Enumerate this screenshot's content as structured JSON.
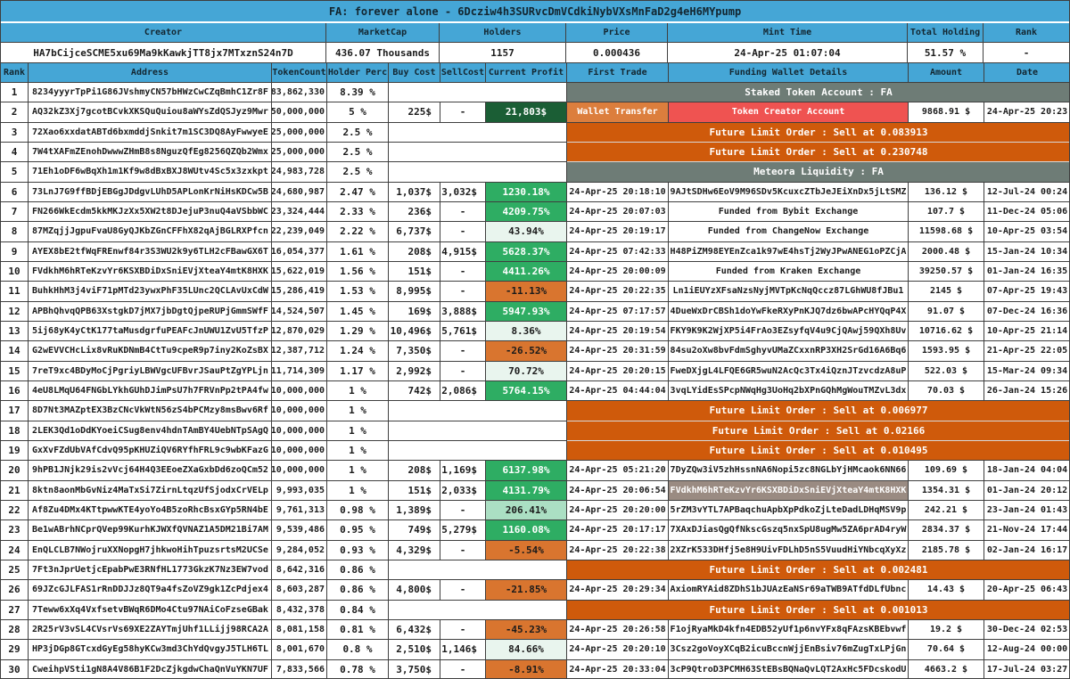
{
  "title": "FA: forever alone - 6Dcziw4h3SURvcDmVCdkiNybVXsMnFaD2g4eH6MYpump",
  "colors": {
    "header_blue": "#45a6d6",
    "grid_border": "#3f3f3f",
    "banner_gray": "#6e7c76",
    "banner_orange": "#cf5a0b",
    "profit_dark_green": "#1b5e35",
    "profit_green": "#2ead63",
    "profit_pale_green": "#e9f5ee",
    "profit_medium_green": "#abdfc3",
    "loss_orange": "#d9752f",
    "wallet_transfer_orange": "#dc7e3d",
    "creator_red": "#ef5351",
    "funding_highlight": "#9a8b82"
  },
  "summary": {
    "headers": [
      "Creator",
      "MarketCap",
      "Holders",
      "Price",
      "Mint Time",
      "Total Holding",
      "Rank"
    ],
    "values": [
      "HA7bCijceSCME5xu69Ma9kKawkjTT8jx7MTxznS24n7D",
      "436.07 Thousands",
      "1157",
      "0.000436",
      "24-Apr-25 01:07:04",
      "51.57 %",
      "-"
    ]
  },
  "table": {
    "headers": [
      "Rank",
      "Address",
      "TokenCount",
      "Holder Perc",
      "Buy Cost",
      "SellCost",
      "Current Profit",
      "First Trade",
      "Funding Wallet Details",
      "Amount",
      "Date"
    ],
    "rows": [
      {
        "rank": "1",
        "address": "8234yyyrTpPi1G86JVshmyCN57bHWzCwCZqBmhC1Zr8F",
        "tokens": "83,862,330",
        "perc": "8.39 %",
        "banner": {
          "text": "Staked Token Account : FA",
          "style": "gray"
        }
      },
      {
        "rank": "2",
        "address": "AQ32kZ3Xj7gcotBCvkXKSQuQuiou8aWYsZdQSJyz9Mwr",
        "tokens": "50,000,000",
        "perc": "5 %",
        "buy": "225$",
        "sell": "-",
        "profit": "21,803$",
        "profit_style": "dark_green",
        "first": "Wallet Transfer",
        "first_style": "wallet-transfer",
        "funding": "Token Creator Account",
        "funding_style": "creator",
        "amount": "9868.91 $",
        "date": "24-Apr-25 20:23"
      },
      {
        "rank": "3",
        "address": "72Xao6xxdatABTd6bxmddjSnkit7m1SC3DQ8AyFwwyeE",
        "tokens": "25,000,000",
        "perc": "2.5 %",
        "banner": {
          "text": "Future Limit Order : Sell at 0.083913",
          "style": "orange"
        }
      },
      {
        "rank": "4",
        "address": "7W4tXAFmZEnohDwwwZHmB8s8NguzQfEg8256QZQb2Wmx",
        "tokens": "25,000,000",
        "perc": "2.5 %",
        "banner": {
          "text": "Future Limit Order : Sell at 0.230748",
          "style": "orange"
        }
      },
      {
        "rank": "5",
        "address": "71Eh1oDF6wBqXh1m1Kf9w8dBxBXJ8WUtv4Sc5x3zxkpt",
        "tokens": "24,983,728",
        "perc": "2.5 %",
        "banner": {
          "text": "Meteora Liquidity : FA",
          "style": "gray"
        }
      },
      {
        "rank": "6",
        "address": "73LnJ7G9ffBDjEBGgJDdgvLUhD5APLonKrNiHsKDCw5B",
        "tokens": "24,680,987",
        "perc": "2.47 %",
        "buy": "1,037$",
        "sell": "3,032$",
        "profit": "1230.18%",
        "profit_style": "green",
        "first": "24-Apr-25 20:18:10",
        "funding": "9AJtSDHw6EoV9M96SDv5KcuxcZTbJeJEiXnDx5jLtSMZ",
        "amount": "136.12 $",
        "date": "12-Jul-24 00:24"
      },
      {
        "rank": "7",
        "address": "FN266WkEcdm5kkMKJzXx5XW2t8DJejuP3nuQ4aVSbbWC",
        "tokens": "23,324,444",
        "perc": "2.33 %",
        "buy": "236$",
        "sell": "-",
        "profit": "4209.75%",
        "profit_style": "green",
        "first": "24-Apr-25 20:07:03",
        "funding": "Funded from Bybit Exchange",
        "amount": "107.7 $",
        "date": "11-Dec-24 05:06"
      },
      {
        "rank": "8",
        "address": "87MZqjjJgpuFvaU8GyQJKbZGnCFFhX82qAjBGLRXPfcn",
        "tokens": "22,239,049",
        "perc": "2.22 %",
        "buy": "6,737$",
        "sell": "-",
        "profit": "43.94%",
        "profit_style": "pale_green",
        "first": "24-Apr-25 20:19:17",
        "funding": "Funded from ChangeNow Exchange",
        "amount": "11598.68 $",
        "date": "10-Apr-25 03:54"
      },
      {
        "rank": "9",
        "address": "AYEX8bE2tfWqFREnwf84r3S3WU2k9y6TLH2cFBawGX6T",
        "tokens": "16,054,377",
        "perc": "1.61 %",
        "buy": "208$",
        "sell": "4,915$",
        "profit": "5628.37%",
        "profit_style": "green",
        "first": "24-Apr-25 07:42:33",
        "funding": "H48PiZM98EYEnZca1k97wE4hsTj2WyJPwANEG1oPZCjA",
        "amount": "2000.48 $",
        "date": "15-Jan-24 10:34"
      },
      {
        "rank": "10",
        "address": "FVdkhM6hRTeKzvYr6KSXBDiDxSniEVjXteaY4mtK8HXK",
        "tokens": "15,622,019",
        "perc": "1.56 %",
        "buy": "151$",
        "sell": "-",
        "profit": "4411.26%",
        "profit_style": "green",
        "first": "24-Apr-25 20:00:09",
        "funding": "Funded from Kraken Exchange",
        "amount": "39250.57 $",
        "date": "01-Jan-24 16:35"
      },
      {
        "rank": "11",
        "address": "BuhkHhM3j4viF71pMTd23ywxPhF35LUnc2QCLAvUxCdW",
        "tokens": "15,286,419",
        "perc": "1.53 %",
        "buy": "8,995$",
        "sell": "-",
        "profit": "-11.13%",
        "profit_style": "loss",
        "first": "24-Apr-25 20:22:35",
        "funding": "Ln1iEUYzXFsaNzsNyjMVTpKcNqQccz87LGhWU8fJBu1",
        "amount": "2145 $",
        "date": "07-Apr-25 19:43"
      },
      {
        "rank": "12",
        "address": "APBhQhvqQPB63XstgkD7jMX7jbDgtQjpeRUPjGmmSWfF",
        "tokens": "14,524,507",
        "perc": "1.45 %",
        "buy": "169$",
        "sell": "3,888$",
        "profit": "5947.93%",
        "profit_style": "green",
        "first": "24-Apr-25 07:17:57",
        "funding": "4DueWxDrCBSh1doYwFkeRXyPnKJQ7dz6bwAPcHYQqP4X",
        "amount": "91.07 $",
        "date": "07-Dec-24 16:36"
      },
      {
        "rank": "13",
        "address": "5ij68yK4yCtK177taMusdgrfuPEAFcJnUWU1ZvU5TfzP",
        "tokens": "12,870,029",
        "perc": "1.29 %",
        "buy": "10,496$",
        "sell": "5,761$",
        "profit": "8.36%",
        "profit_style": "pale_green",
        "first": "24-Apr-25 20:19:54",
        "funding": "FKY9K9K2WjXP5i4FrAo3EZsyfqV4u9CjQAwj59QXh8Uv",
        "amount": "10716.62 $",
        "date": "10-Apr-25 21:14"
      },
      {
        "rank": "14",
        "address": "G2wEVVCHcLix8vRuKDNmB4CtTu9cpeR9p7iny2KoZsBX",
        "tokens": "12,387,712",
        "perc": "1.24 %",
        "buy": "7,350$",
        "sell": "-",
        "profit": "-26.52%",
        "profit_style": "loss",
        "first": "24-Apr-25 20:31:59",
        "funding": "84su2oXw8bvFdmSghyvUMaZCxxnRP3XH2SrGd16A6Bq6",
        "amount": "1593.95 $",
        "date": "21-Apr-25 22:05"
      },
      {
        "rank": "15",
        "address": "7reT9xc4BDyMoCjPgriyLBWVgcUFBvrJSauPtZgYPLjn",
        "tokens": "11,714,309",
        "perc": "1.17 %",
        "buy": "2,992$",
        "sell": "-",
        "profit": "70.72%",
        "profit_style": "pale_green",
        "first": "24-Apr-25 20:20:15",
        "funding": "FweDXjgL4LFQE6GR5wuN2AcQc3Tx4iQznJTzvcdzA8uP",
        "amount": "522.03 $",
        "date": "15-Mar-24 09:34"
      },
      {
        "rank": "16",
        "address": "4eU8LMqU64FNGbLYkhGUhDJimPsU7h7FRVnPp2tPA4fw",
        "tokens": "10,000,000",
        "perc": "1 %",
        "buy": "742$",
        "sell": "2,086$",
        "profit": "5764.15%",
        "profit_style": "green",
        "first": "24-Apr-25 04:44:04",
        "funding": "3vqLYidEsSPcpNWqHg3UoHq2bXPnGQhMgWouTMZvL3dx",
        "amount": "70.03 $",
        "date": "26-Jan-24 15:26"
      },
      {
        "rank": "17",
        "address": "8D7Nt3MAZptEX3BzCNcVkWtN56zS4bPCMzy8msBwv6Rf",
        "tokens": "10,000,000",
        "perc": "1 %",
        "banner": {
          "text": "Future Limit Order : Sell at 0.006977",
          "style": "orange"
        }
      },
      {
        "rank": "18",
        "address": "2LEK3Qd1oDdKYoeiCSug8env4hdnTAmBY4UebNTpSAgQ",
        "tokens": "10,000,000",
        "perc": "1 %",
        "banner": {
          "text": "Future Limit Order : Sell at 0.02166",
          "style": "orange"
        }
      },
      {
        "rank": "19",
        "address": "GxXvFZdUbVAfCdvQ95pKHUZiQV6RYfhFRL9c9wbKFazG",
        "tokens": "10,000,000",
        "perc": "1 %",
        "banner": {
          "text": "Future Limit Order : Sell at 0.010495",
          "style": "orange"
        }
      },
      {
        "rank": "20",
        "address": "9hPB1JNjk29is2vVcj64H4Q3EEoeZXaGxbDd6zoQCm52",
        "tokens": "10,000,000",
        "perc": "1 %",
        "buy": "208$",
        "sell": "1,169$",
        "profit": "6137.98%",
        "profit_style": "green",
        "first": "24-Apr-25 05:21:20",
        "funding": "7DyZQw3iV5zhHssnNA6Nopi5zc8NGLbYjHMcaok6NN66",
        "amount": "109.69 $",
        "date": "18-Jan-24 04:04"
      },
      {
        "rank": "21",
        "address": "8ktn8aonMbGvNiz4MaTxSi7ZirnLtqzUfSjodxCrVELp",
        "tokens": "9,993,035",
        "perc": "1 %",
        "buy": "151$",
        "sell": "2,033$",
        "profit": "4131.79%",
        "profit_style": "green",
        "first": "24-Apr-25 20:06:54",
        "funding": "FVdkhM6hRTeKzvYr6KSXBDiDxSniEVjXteaY4mtK8HXK",
        "funding_style": "highlight",
        "amount": "1354.31 $",
        "date": "01-Jan-24 20:12"
      },
      {
        "rank": "22",
        "address": "Af8Zu4DMx4KTtpwwKTE4yoYo4B5zoRhcBsxGYp5RN4bE",
        "tokens": "9,761,313",
        "perc": "0.98 %",
        "buy": "1,389$",
        "sell": "-",
        "profit": "206.41%",
        "profit_style": "medium_green",
        "first": "24-Apr-25 20:20:00",
        "funding": "5rZM3vYTL7APBaqchuApbXpPdkoZjLteDadLDHqMSV9p",
        "amount": "242.21 $",
        "date": "23-Jan-24 01:43"
      },
      {
        "rank": "23",
        "address": "Be1wABrhNCprQVep99KurhKJWXfQVNAZ1A5DM21Bi7AM",
        "tokens": "9,539,486",
        "perc": "0.95 %",
        "buy": "749$",
        "sell": "5,279$",
        "profit": "1160.08%",
        "profit_style": "green",
        "first": "24-Apr-25 20:17:17",
        "funding": "7XAxDJiasQgQfNkscGszq5nxSpU8ugMw5ZA6prAD4ryW",
        "amount": "2834.37 $",
        "date": "21-Nov-24 17:44"
      },
      {
        "rank": "24",
        "address": "EnQLCLB7NWojruXXNopgH7jhkwoHihTpuzsrtsM2UCSe",
        "tokens": "9,284,052",
        "perc": "0.93 %",
        "buy": "4,329$",
        "sell": "-",
        "profit": "-5.54%",
        "profit_style": "loss",
        "first": "24-Apr-25 20:22:38",
        "funding": "2XZrK533DHfj5e8H9UivFDLhD5nS5VuudHiYNbcqXyXz",
        "amount": "2185.78 $",
        "date": "02-Jan-24 16:17"
      },
      {
        "rank": "25",
        "address": "7Ft3nJprUetjcEpabPwE3RNfHL1773GkzK7Nz3EW7vod",
        "tokens": "8,642,316",
        "perc": "0.86 %",
        "banner": {
          "text": "Future Limit Order : Sell at 0.002481",
          "style": "orange"
        }
      },
      {
        "rank": "26",
        "address": "69JZcGJLFAS1rRnDDJJz8QT9a4fsZoVZ9gk1ZcPdjex4",
        "tokens": "8,603,287",
        "perc": "0.86 %",
        "buy": "4,800$",
        "sell": "-",
        "profit": "-21.85%",
        "profit_style": "loss",
        "first": "24-Apr-25 20:29:34",
        "funding": "AxiomRYAid8ZDhS1bJUAzEaNSr69aTWB9ATfdDLfUbnc",
        "amount": "14.43 $",
        "date": "20-Apr-25 06:43"
      },
      {
        "rank": "27",
        "address": "7Teww6xXq4VxfsetvBWqR6DMo4Ctu97NAiCoFzseGBak",
        "tokens": "8,432,378",
        "perc": "0.84 %",
        "banner": {
          "text": "Future Limit Order : Sell at 0.001013",
          "style": "orange"
        }
      },
      {
        "rank": "28",
        "address": "2R25rV3vSL4CVsrVs69XE2ZAYTmjUhf1LLijj98RCA2A",
        "tokens": "8,081,158",
        "perc": "0.81 %",
        "buy": "6,432$",
        "sell": "-",
        "profit": "-45.23%",
        "profit_style": "loss",
        "first": "24-Apr-25 20:26:58",
        "funding": "F1ojRyaMkD4kfn4EDB52yUf1p6nvYFx8qFAzsKBEbvwf",
        "amount": "19.2 $",
        "date": "30-Dec-24 02:53"
      },
      {
        "rank": "29",
        "address": "HP3jDGp8GTcxdGyEg58hyKCw3md3ChYdQvgyJ5TLH6TL",
        "tokens": "8,001,670",
        "perc": "0.8 %",
        "buy": "2,510$",
        "sell": "1,146$",
        "profit": "84.66%",
        "profit_style": "pale_green",
        "first": "24-Apr-25 20:20:10",
        "funding": "3Csz2goVoyXCqB2icuBccnWjjEnBsiv76mZugTxLPjGn",
        "amount": "70.64 $",
        "date": "12-Aug-24 00:00"
      },
      {
        "rank": "30",
        "address": "CweihpVSti1gN8A4V86B1F2DcZjkgdwChaQnVuYKN7UF",
        "tokens": "7,833,566",
        "perc": "0.78 %",
        "buy": "3,750$",
        "sell": "-",
        "profit": "-8.91%",
        "profit_style": "loss",
        "first": "24-Apr-25 20:33:04",
        "funding": "3cP9QtroD3PCMH63StEBsBQNaQvLQT2AxHc5FDcskodU",
        "amount": "4663.2 $",
        "date": "17-Jul-24 03:27"
      }
    ]
  }
}
